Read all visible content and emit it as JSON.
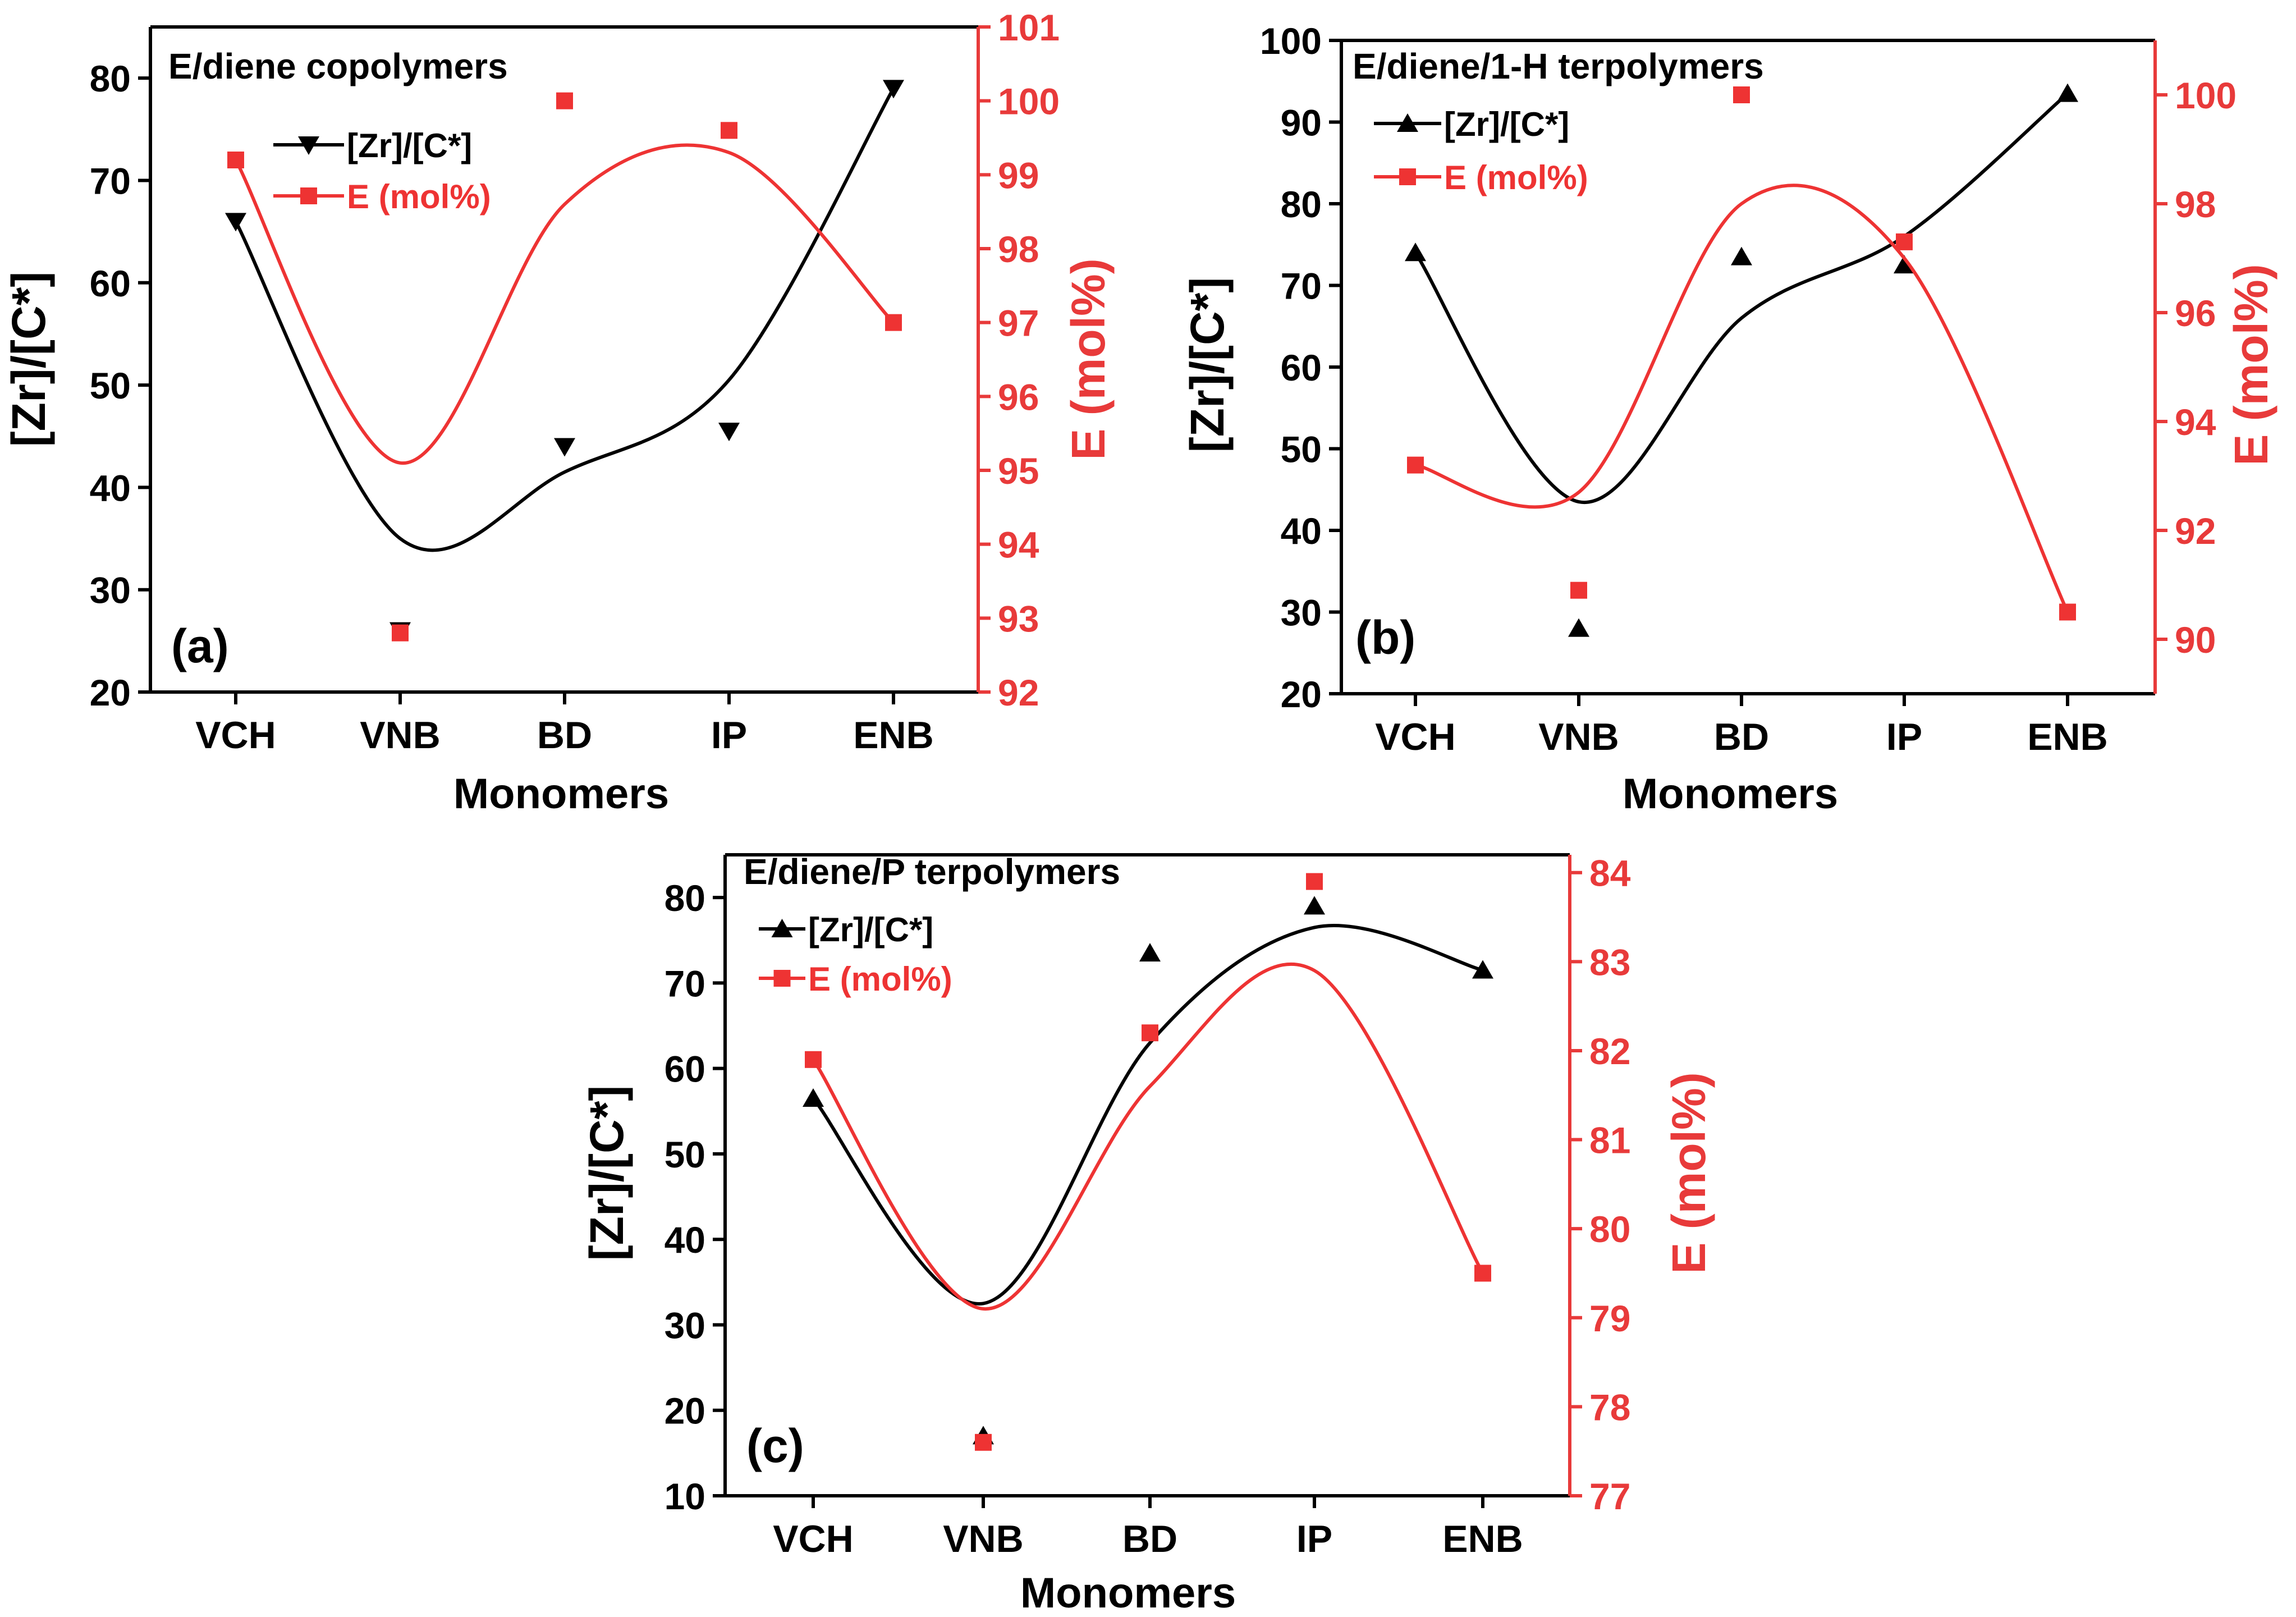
{
  "colors": {
    "black": "#000000",
    "red": "#ee3333",
    "red_axis": "#e83a3a"
  },
  "chart_data": [
    {
      "type": "scatter",
      "panel_label": "(a)",
      "title": "E/diene copolymers",
      "xlabel": "Monomers",
      "ylabel": "[Zr]/[C*]",
      "y2label": "E (mol%)",
      "categories": [
        "VCH",
        "VNB",
        "BD",
        "IP",
        "ENB"
      ],
      "ylim": [
        20,
        85
      ],
      "yticks": [
        20,
        30,
        40,
        50,
        60,
        70,
        80
      ],
      "y2lim": [
        92,
        101
      ],
      "y2ticks": [
        92,
        93,
        94,
        95,
        96,
        97,
        98,
        99,
        100,
        101
      ],
      "legend_position": "top-left",
      "series": [
        {
          "name": "[Zr]/[C*]",
          "axis": "left",
          "marker": "triangle-down",
          "color": "#000000",
          "values": [
            66,
            26,
            44,
            45.5,
            79
          ],
          "fit_curve": [
            66,
            35,
            41.5,
            50.5,
            79
          ]
        },
        {
          "name": "E (mol%)",
          "axis": "right",
          "marker": "square",
          "color": "#ee3333",
          "values": [
            99.2,
            92.8,
            100,
            99.6,
            97
          ],
          "fit_curve": [
            99.2,
            95.1,
            98.6,
            99.3,
            97
          ]
        }
      ]
    },
    {
      "type": "scatter",
      "panel_label": "(b)",
      "title": "E/diene/1-H terpolymers",
      "xlabel": "Monomers",
      "ylabel": "[Zr]/[C*]",
      "y2label": "E (mol%)",
      "categories": [
        "VCH",
        "VNB",
        "BD",
        "IP",
        "ENB"
      ],
      "ylim": [
        20,
        100
      ],
      "yticks": [
        20,
        30,
        40,
        50,
        60,
        70,
        80,
        90,
        100
      ],
      "y2lim": [
        89,
        101
      ],
      "y2ticks": [
        90,
        92,
        94,
        96,
        98,
        100
      ],
      "legend_position": "top-left",
      "series": [
        {
          "name": "[Zr]/[C*]",
          "axis": "left",
          "marker": "triangle-up",
          "color": "#000000",
          "values": [
            74,
            28,
            73.5,
            72.5,
            93.5
          ],
          "fit_curve": [
            74,
            43.5,
            66,
            76,
            93.5
          ]
        },
        {
          "name": "E (mol%)",
          "axis": "right",
          "marker": "square",
          "color": "#ee3333",
          "values": [
            93.2,
            90.9,
            100,
            97.3,
            90.5
          ],
          "fit_curve": [
            93.2,
            92.7,
            98,
            97,
            90.5
          ]
        }
      ]
    },
    {
      "type": "scatter",
      "panel_label": "(c)",
      "title": "E/diene/P terpolymers",
      "xlabel": "Monomers",
      "ylabel": "[Zr]/[C*]",
      "y2label": "E (mol%)",
      "categories": [
        "VCH",
        "VNB",
        "BD",
        "IP",
        "ENB"
      ],
      "ylim": [
        10,
        85
      ],
      "yticks": [
        10,
        20,
        30,
        40,
        50,
        60,
        70,
        80
      ],
      "y2lim": [
        77,
        84.2
      ],
      "y2ticks": [
        77,
        78,
        79,
        80,
        81,
        82,
        83,
        84
      ],
      "legend_position": "top-left",
      "series": [
        {
          "name": "[Zr]/[C*]",
          "axis": "left",
          "marker": "triangle-up",
          "color": "#000000",
          "values": [
            56.5,
            17,
            73.5,
            79,
            71.5
          ],
          "fit_curve": [
            56.5,
            32.5,
            63,
            76.5,
            71.5
          ]
        },
        {
          "name": "E (mol%)",
          "axis": "right",
          "marker": "square",
          "color": "#ee3333",
          "values": [
            81.9,
            77.6,
            82.2,
            83.9,
            79.5
          ],
          "fit_curve": [
            81.9,
            79.1,
            81.6,
            82.9,
            79.5
          ]
        }
      ]
    }
  ]
}
